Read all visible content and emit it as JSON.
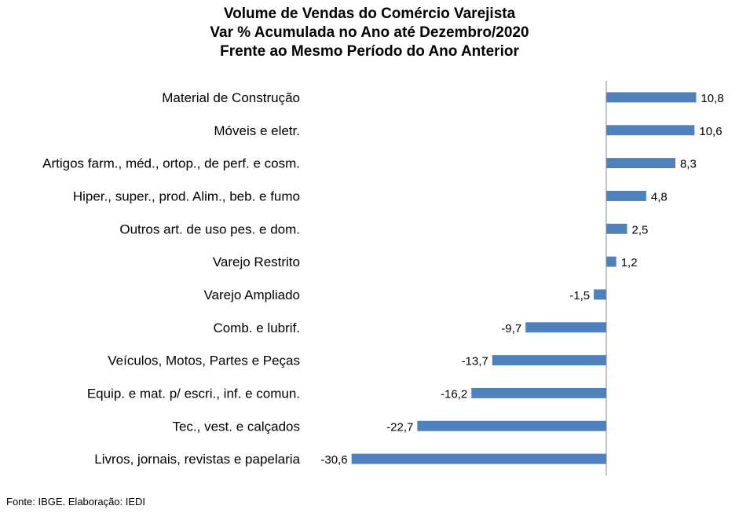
{
  "chart_data": {
    "type": "bar",
    "orientation": "horizontal",
    "title": [
      "Volume de Vendas do Comércio Varejista",
      "Var % Acumulada no Ano até Dezembro/2020",
      "Frente ao Mesmo Período do Ano Anterior"
    ],
    "categories": [
      "Material de Construção",
      "Móveis e eletr.",
      "Artigos farm., méd., ortop., de perf. e cosm.",
      "Hiper., super., prod. Alim., beb. e fumo",
      "Outros art. de uso pes. e dom.",
      "Varejo Restrito",
      "Varejo Ampliado",
      "Comb. e lubrif.",
      "Veículos, Motos, Partes e Peças",
      "Equip. e mat. p/ escri., inf. e comun.",
      "Tec., vest. e calçados",
      "Livros, jornais, revistas e papelaria"
    ],
    "values": [
      10.8,
      10.6,
      8.3,
      4.8,
      2.5,
      1.2,
      -1.5,
      -9.7,
      -13.7,
      -16.2,
      -22.7,
      -30.6
    ],
    "value_labels": [
      "10,8",
      "10,6",
      "8,3",
      "4,8",
      "2,5",
      "1,2",
      "-1,5",
      "-9,7",
      "-13,7",
      "-16,2",
      "-22,7",
      "-30,6"
    ],
    "bar_color": "#4F81BD",
    "grid": false,
    "legend": "none"
  },
  "footer": "Fonte: IBGE. Elaboração: IEDI"
}
